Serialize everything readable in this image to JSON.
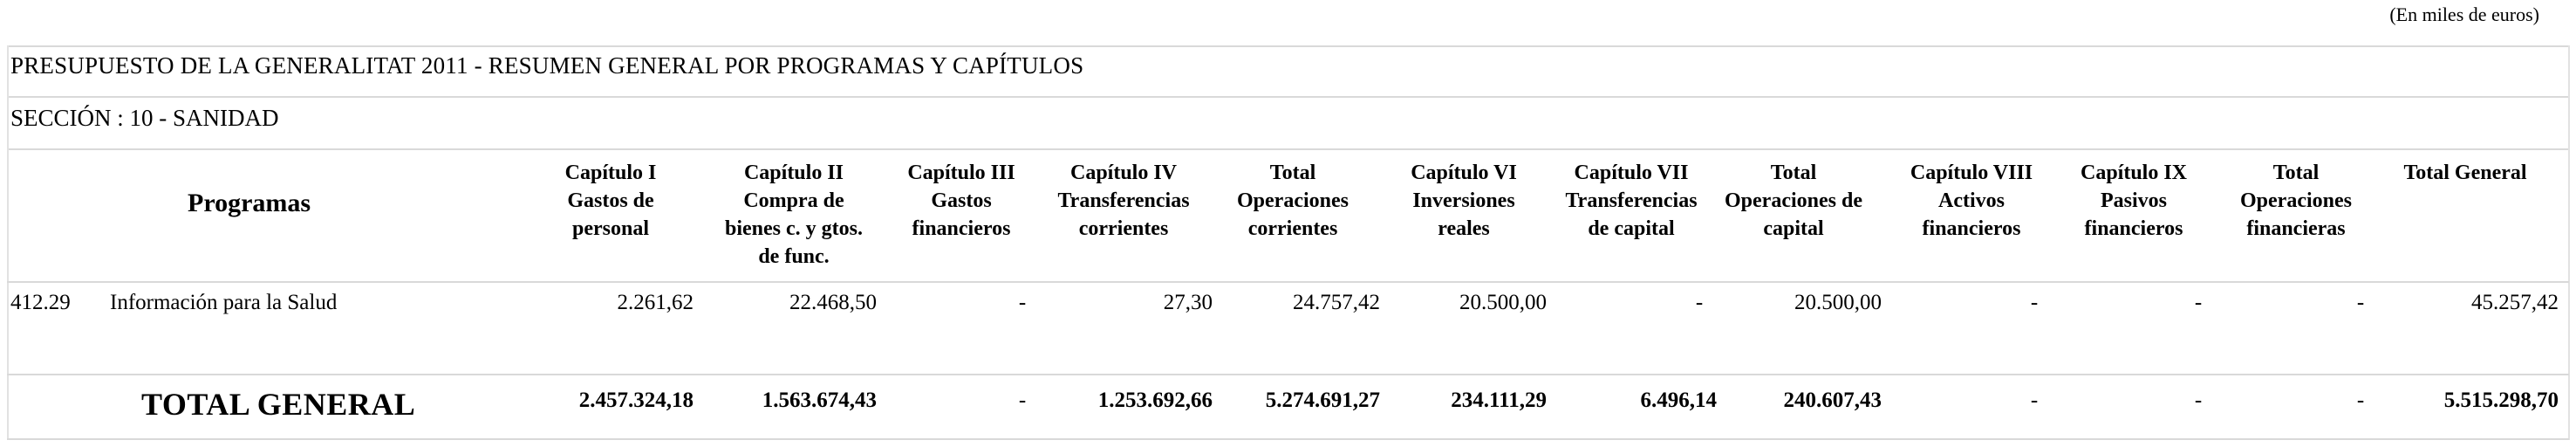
{
  "units_note": "(En miles de euros)",
  "title": "PRESUPUESTO DE LA GENERALITAT 2011 - RESUMEN GENERAL POR PROGRAMAS Y CAPÍTULOS",
  "section": "SECCIÓN : 10  -  SANIDAD",
  "programs_header": "Programas",
  "columns": [
    [
      "Capítulo I",
      "Gastos de",
      "personal"
    ],
    [
      "Capítulo II",
      "Compra de",
      "bienes c. y gtos.",
      "de func."
    ],
    [
      "Capítulo III",
      "Gastos",
      "financieros"
    ],
    [
      "Capítulo IV",
      "Transferencias",
      "corrientes"
    ],
    [
      "Total",
      "Operaciones",
      "corrientes"
    ],
    [
      "Capítulo VI",
      "Inversiones",
      "reales"
    ],
    [
      "Capítulo VII",
      "Transferencias",
      "de capital"
    ],
    [
      "Total",
      "Operaciones de",
      "capital"
    ],
    [
      "Capítulo VIII",
      "Activos",
      "financieros"
    ],
    [
      "Capítulo IX",
      "Pasivos",
      "financieros"
    ],
    [
      "Total",
      "Operaciones",
      "financieras"
    ],
    [
      "Total General"
    ]
  ],
  "rows": [
    {
      "code": "412.29",
      "name": "Información para la Salud",
      "values": [
        "2.261,62",
        "22.468,50",
        "-",
        "27,30",
        "24.757,42",
        "20.500,00",
        "-",
        "20.500,00",
        "-",
        "-",
        "-",
        "45.257,42"
      ]
    }
  ],
  "total": {
    "label": "TOTAL GENERAL",
    "values": [
      "2.457.324,18",
      "1.563.674,43",
      "-",
      "1.253.692,66",
      "5.274.691,27",
      "234.111,29",
      "6.496,14",
      "240.607,43",
      "-",
      "-",
      "-",
      "5.515.298,70"
    ]
  }
}
